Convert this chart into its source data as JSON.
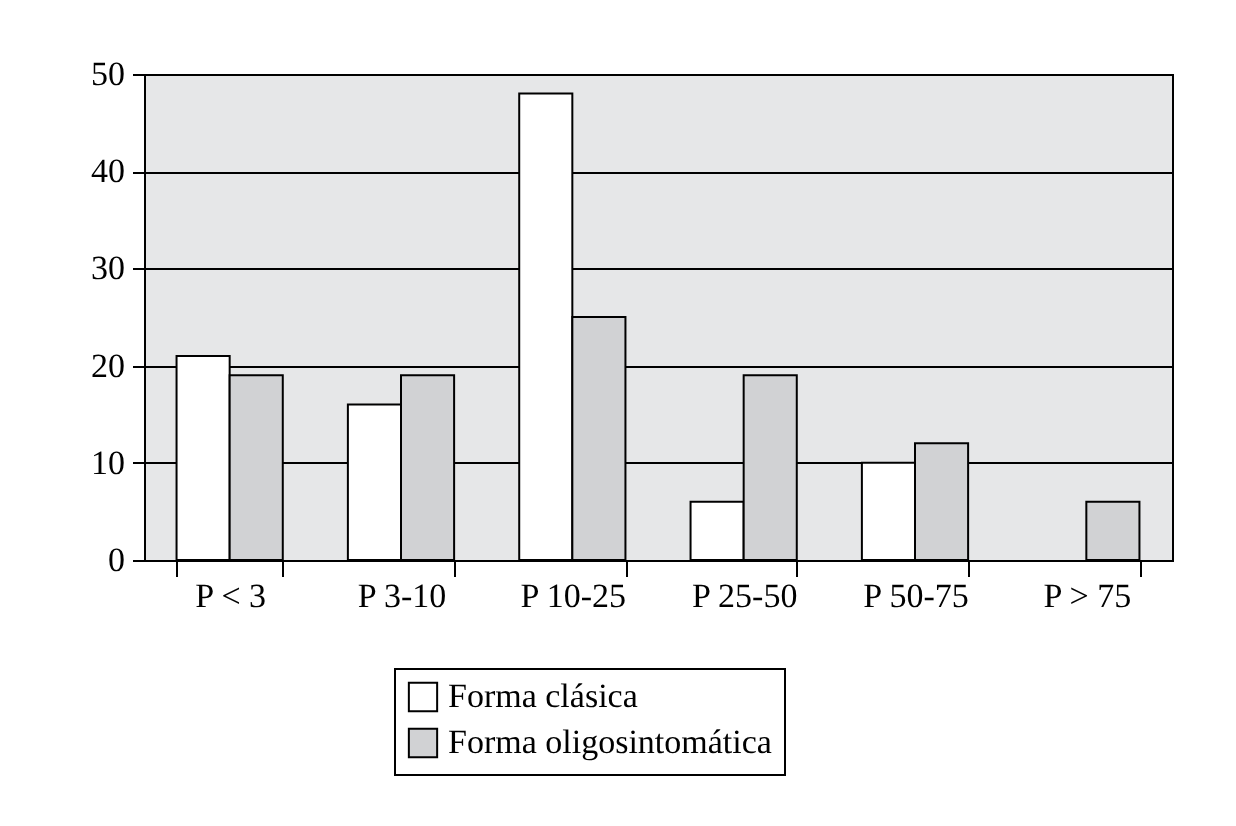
{
  "chart_data": {
    "type": "bar",
    "categories": [
      "P < 3",
      "P 3-10",
      "P 10-25",
      "P 25-50",
      "P 50-75",
      "P > 75"
    ],
    "series": [
      {
        "name": "Forma clásica",
        "color": "#ffffff",
        "values": [
          21,
          16,
          48,
          6,
          10,
          0
        ]
      },
      {
        "name": "Forma oligosintomática",
        "color": "#d1d2d4",
        "values": [
          19,
          19,
          25,
          19,
          12,
          6
        ]
      }
    ],
    "ylim": [
      0,
      50
    ],
    "yticks": [
      0,
      10,
      20,
      30,
      40,
      50
    ],
    "grid": "y",
    "legend": "bottom"
  }
}
